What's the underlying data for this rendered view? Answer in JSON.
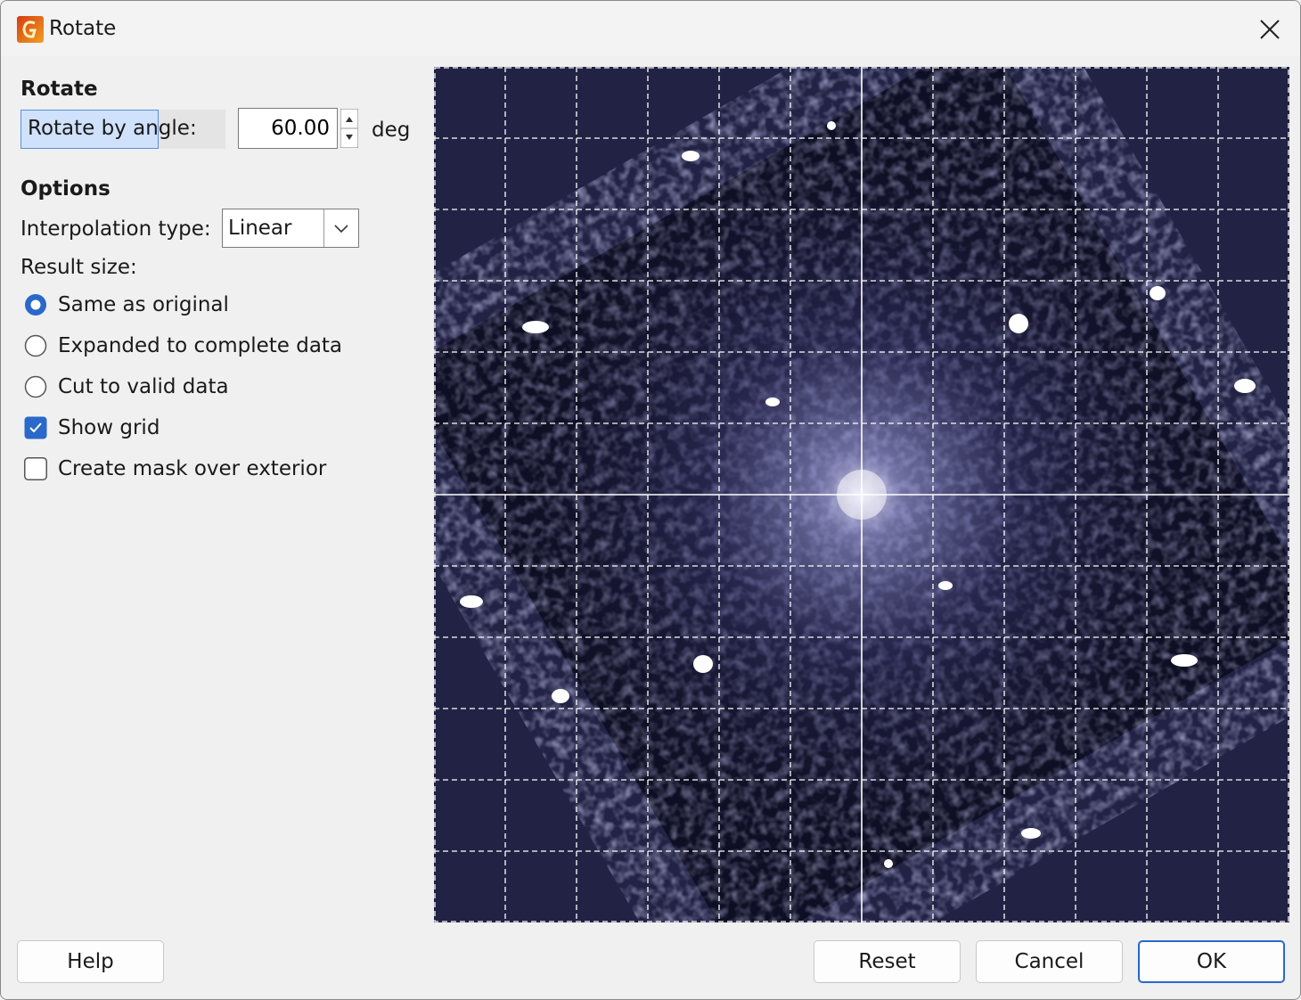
{
  "window": {
    "title": "Rotate",
    "close_icon": "close-icon",
    "app_icon": "gwyddion-app-icon"
  },
  "rotate_section": {
    "heading": "Rotate",
    "angle_label": "Rotate by angle:",
    "angle_value": "60.00",
    "angle_unit": "deg"
  },
  "options_section": {
    "heading": "Options",
    "interpolation_label": "Interpolation type:",
    "interpolation_value": "Linear",
    "result_size_label": "Result size:",
    "result_size_options": [
      {
        "label": "Same as original",
        "selected": true
      },
      {
        "label": "Expanded to complete data",
        "selected": false
      },
      {
        "label": "Cut to valid data",
        "selected": false
      }
    ],
    "show_grid": {
      "label": "Show grid",
      "checked": true
    },
    "create_mask": {
      "label": "Create mask over exterior",
      "checked": false
    }
  },
  "preview": {
    "rotation_deg": 60,
    "grid_lines": 12,
    "colors": {
      "background": "#1f2040",
      "spot": "#ffffff",
      "haze": "#9a9ad8"
    }
  },
  "buttons": {
    "help": "Help",
    "reset": "Reset",
    "cancel": "Cancel",
    "ok": "OK"
  },
  "colors": {
    "accent": "#2a68c9",
    "selection": "#cfe1fb"
  }
}
